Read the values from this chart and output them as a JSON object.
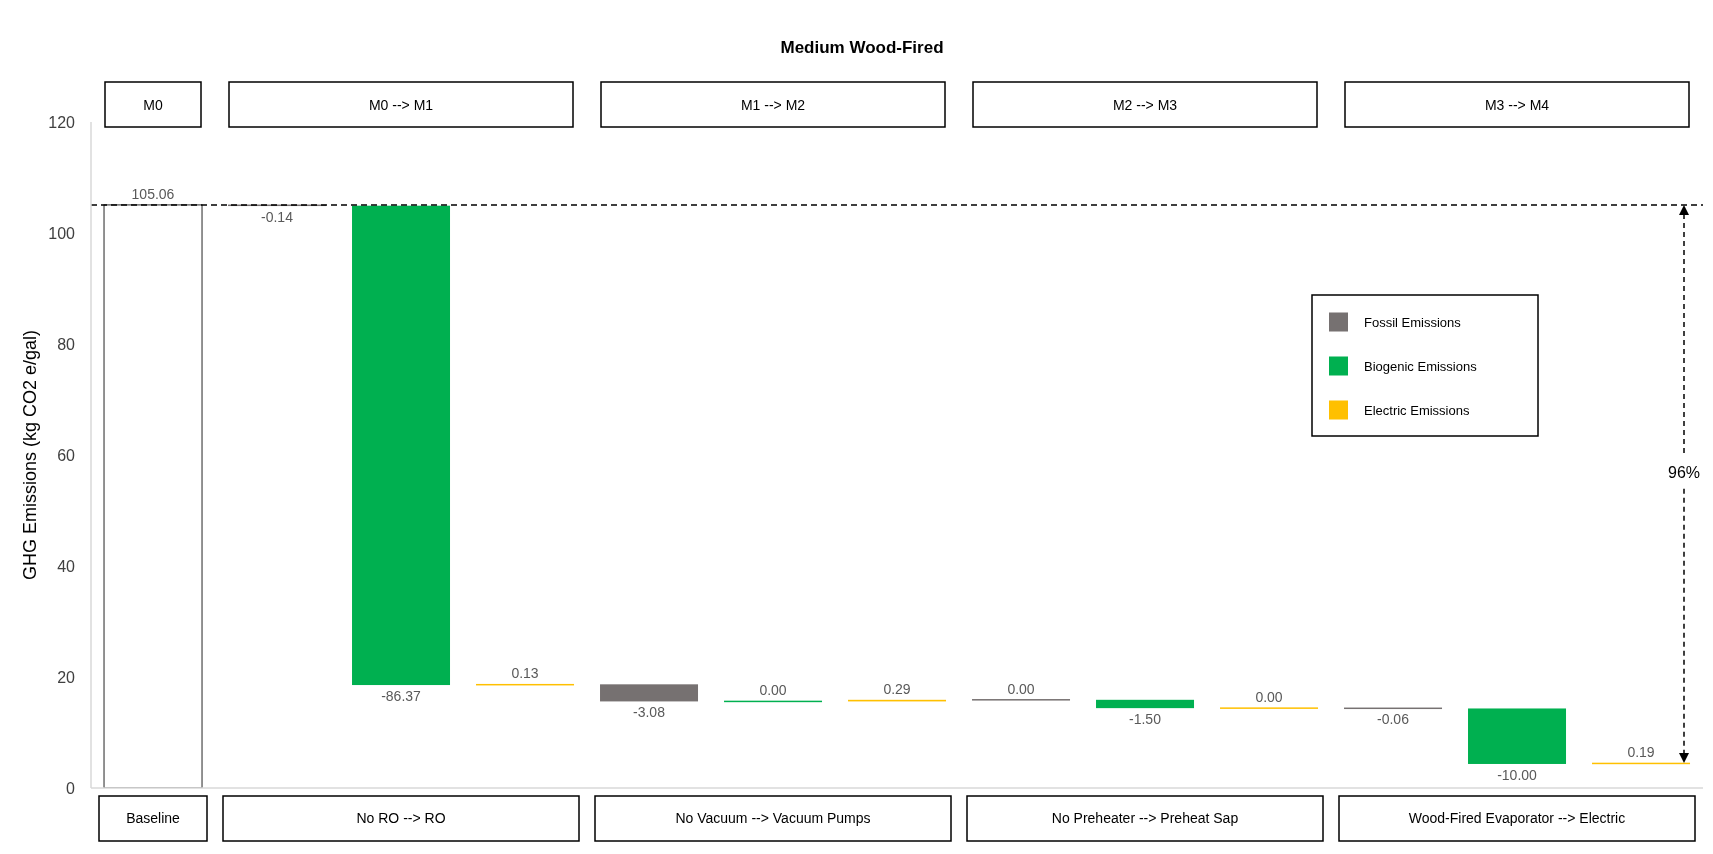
{
  "chart_data": {
    "type": "bar",
    "title": "Medium Wood-Fired",
    "ylabel": "GHG Emissions (kg CO2 e/gal)",
    "categories": [
      "Baseline",
      null,
      "No RO --> RO",
      null,
      null,
      "No Vacuum --> Vacuum Pumps",
      null,
      null,
      "No Preheater --> Preheat Sap",
      null,
      null,
      "Wood-Fired Evaporator --> Electric",
      null
    ],
    "series": [
      {
        "color": "#ffffff",
        "values": [
          105.06,
          null,
          null,
          null,
          null,
          null,
          null,
          null,
          null,
          null,
          null,
          null,
          null
        ],
        "value_labels": [
          "105.06",
          null,
          null,
          null,
          null,
          null,
          null,
          null,
          null,
          null,
          null,
          null,
          null
        ]
      },
      {
        "name": "Fossil Emissions",
        "color": "#767171",
        "values": [
          null,
          -0.14,
          null,
          null,
          -3.08,
          null,
          null,
          0,
          null,
          null,
          -0.06,
          null,
          null
        ],
        "base": [
          null,
          105.06,
          null,
          null,
          18.68,
          null,
          null,
          15.89,
          null,
          null,
          14.39,
          null,
          null
        ],
        "value_labels": [
          null,
          "-0.14",
          null,
          null,
          "-3.08",
          null,
          null,
          "0.00",
          null,
          null,
          "-0.06",
          null,
          null
        ]
      },
      {
        "name": "Biogenic Emissions",
        "color": "#00b050",
        "values": [
          null,
          null,
          -86.37,
          null,
          null,
          0,
          null,
          null,
          -1.5,
          null,
          null,
          -10,
          null
        ],
        "base": [
          null,
          null,
          104.92,
          null,
          null,
          15.6,
          null,
          null,
          15.89,
          null,
          null,
          14.33,
          null
        ],
        "value_labels": [
          null,
          null,
          "-86.37",
          null,
          null,
          "0.00",
          null,
          null,
          "-1.50",
          null,
          null,
          "-10.00",
          null
        ]
      },
      {
        "name": "Electric Emissions",
        "color": "#ffc000",
        "values": [
          null,
          null,
          null,
          0.13,
          null,
          null,
          0.29,
          null,
          null,
          0,
          null,
          null,
          0.19
        ],
        "base": [
          null,
          null,
          null,
          18.55,
          null,
          null,
          15.6,
          null,
          null,
          14.39,
          null,
          null,
          4.33
        ],
        "value_labels": [
          null,
          null,
          null,
          "0.13",
          null,
          null,
          "0.29",
          null,
          null,
          "0.00",
          null,
          null,
          "0.19"
        ]
      }
    ],
    "ylim": [
      0,
      120
    ],
    "yticks": [
      0,
      20,
      40,
      60,
      80,
      100,
      120
    ],
    "ref_lines": [
      {
        "axis": "y",
        "value": 105.06,
        "color": "#000000",
        "line_style": "dashed"
      }
    ],
    "annotations": [
      "M0",
      "M0 --> M1",
      "M1 --> M2",
      "M2 --> M3",
      "M3 --> M4",
      "96%"
    ],
    "legend": "right"
  }
}
